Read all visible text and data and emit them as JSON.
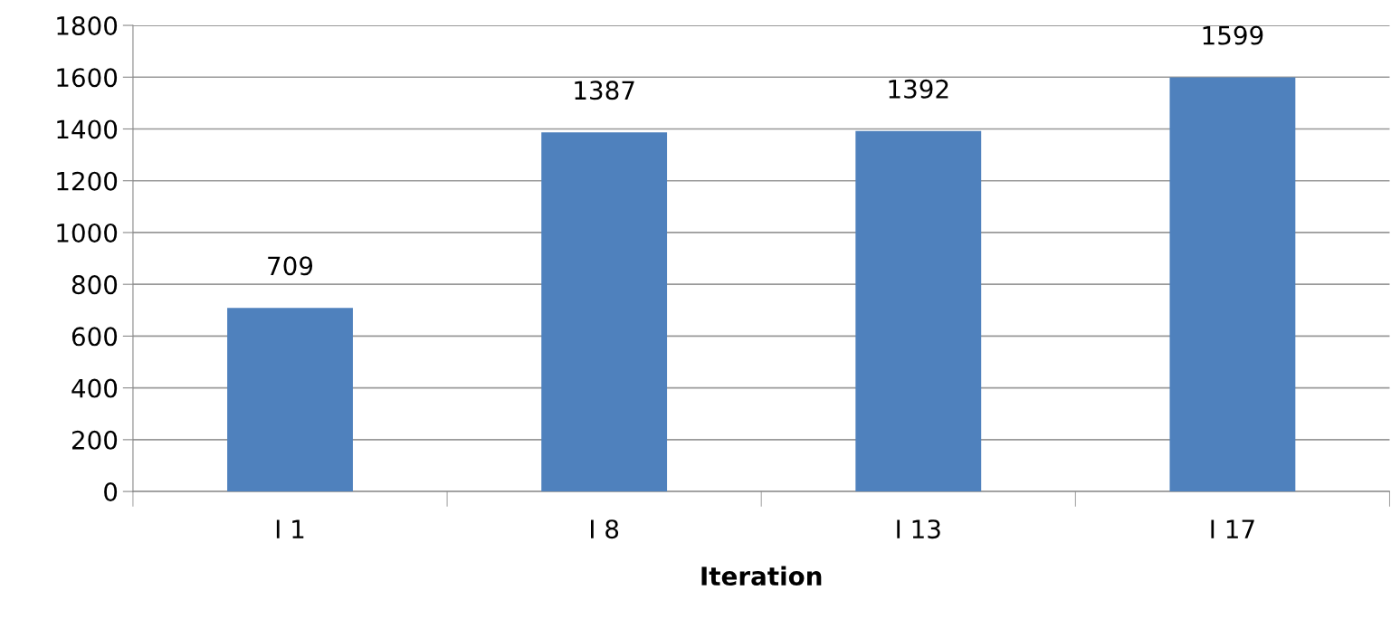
{
  "chart_data": {
    "type": "bar",
    "xlabel": "Iteration",
    "categories": [
      "I 1",
      "I 8",
      "I 13",
      "I 17"
    ],
    "values": [
      709,
      1387,
      1392,
      1599
    ],
    "color": "#4f81bd",
    "ylim": [
      0,
      1800
    ],
    "yticks": [
      0,
      200,
      400,
      600,
      800,
      1000,
      1200,
      1400,
      1600,
      1800
    ],
    "grid": "y",
    "data_labels": true,
    "legend": false
  }
}
